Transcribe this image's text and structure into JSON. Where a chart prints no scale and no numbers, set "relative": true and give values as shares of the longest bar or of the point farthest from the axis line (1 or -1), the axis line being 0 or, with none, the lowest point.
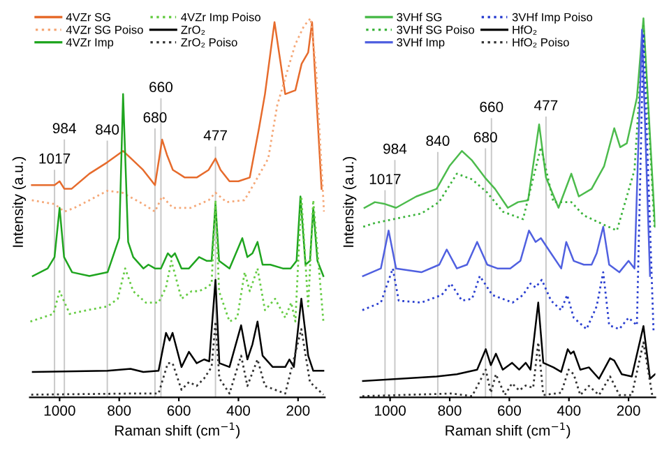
{
  "chart_data": [
    {
      "type": "line",
      "relative": true,
      "xlabel": "Raman shift (cm$^{−1}$)",
      "ylabel": "Intensity (a.u.)",
      "xlim": [
        1100,
        110
      ],
      "xticks": [
        1000,
        800,
        600,
        400,
        200
      ],
      "legend": "top left",
      "ref_lines": [
        {
          "axis": "x",
          "value": 1017,
          "label": "1017",
          "color": "#c8c8c8"
        },
        {
          "axis": "x",
          "value": 984,
          "label": "984",
          "color": "#c8c8c8"
        },
        {
          "axis": "x",
          "value": 840,
          "label": "840",
          "color": "#c8c8c8"
        },
        {
          "axis": "x",
          "value": 680,
          "label": "680",
          "color": "#c8c8c8"
        },
        {
          "axis": "x",
          "value": 660,
          "label": "660",
          "color": "#c8c8c8"
        },
        {
          "axis": "x",
          "value": 477,
          "label": "477",
          "color": "#c8c8c8"
        }
      ],
      "series": [
        {
          "name": "4VZr SG",
          "color": "#e66b2c",
          "line_style": "solid",
          "x": [
            1093,
            1017,
            1000,
            984,
            960,
            900,
            840,
            787,
            760,
            720,
            680,
            656,
            640,
            620,
            580,
            540,
            500,
            477,
            460,
            430,
            400,
            362,
            331,
            311,
            279,
            243,
            209,
            188,
            166,
            153,
            121
          ],
          "values": [
            0.56,
            0.56,
            0.57,
            0.55,
            0.55,
            0.59,
            0.62,
            0.65,
            0.63,
            0.6,
            0.56,
            0.68,
            0.64,
            0.6,
            0.58,
            0.58,
            0.6,
            0.63,
            0.6,
            0.57,
            0.57,
            0.58,
            0.71,
            0.8,
            0.99,
            0.8,
            0.81,
            0.88,
            0.91,
            0.99,
            0.55
          ]
        },
        {
          "name": "4VZr SG Poiso",
          "color": "#f5a878",
          "line_style": "dotted",
          "x": [
            1093,
            1017,
            984,
            950,
            900,
            840,
            790,
            720,
            680,
            656,
            620,
            560,
            500,
            477,
            440,
            380,
            350,
            300,
            270,
            240,
            210,
            180,
            158,
            140,
            113
          ],
          "values": [
            0.52,
            0.51,
            0.49,
            0.5,
            0.52,
            0.545,
            0.54,
            0.51,
            0.49,
            0.53,
            0.5,
            0.5,
            0.52,
            0.54,
            0.515,
            0.52,
            0.56,
            0.63,
            0.77,
            0.85,
            0.93,
            0.98,
            1.0,
            0.87,
            0.49
          ]
        },
        {
          "name": "4VZr Imp",
          "color": "#1fa51f",
          "line_style": "solid",
          "x": [
            1090,
            1040,
            1017,
            1000,
            985,
            958,
            900,
            839,
            800,
            787,
            770,
            753,
            719,
            702,
            680,
            660,
            637,
            625,
            613,
            591,
            566,
            532,
            506,
            490,
            477,
            465,
            430,
            387,
            370,
            353,
            336,
            319,
            293,
            251,
            225,
            205,
            192,
            175,
            160,
            149,
            135,
            115
          ],
          "values": [
            0.32,
            0.34,
            0.37,
            0.5,
            0.37,
            0.33,
            0.32,
            0.33,
            0.42,
            0.8,
            0.41,
            0.37,
            0.34,
            0.35,
            0.34,
            0.34,
            0.38,
            0.37,
            0.38,
            0.34,
            0.34,
            0.37,
            0.36,
            0.36,
            0.51,
            0.36,
            0.34,
            0.42,
            0.37,
            0.38,
            0.41,
            0.35,
            0.35,
            0.34,
            0.34,
            0.36,
            0.53,
            0.35,
            0.36,
            0.5,
            0.36,
            0.32
          ]
        },
        {
          "name": "4VZr Imp Poiso",
          "color": "#66cc44",
          "line_style": "dotted",
          "x": [
            1098,
            1021,
            1000,
            966,
            907,
            839,
            805,
            780,
            753,
            711,
            668,
            643,
            625,
            591,
            557,
            532,
            506,
            490,
            477,
            465,
            430,
            404,
            379,
            362,
            336,
            311,
            277,
            243,
            223,
            209,
            189,
            166,
            149,
            115
          ],
          "values": [
            0.2,
            0.22,
            0.28,
            0.22,
            0.23,
            0.24,
            0.26,
            0.34,
            0.28,
            0.25,
            0.25,
            0.29,
            0.36,
            0.26,
            0.28,
            0.28,
            0.29,
            0.3,
            0.52,
            0.28,
            0.2,
            0.21,
            0.33,
            0.28,
            0.34,
            0.23,
            0.26,
            0.21,
            0.25,
            0.2,
            0.53,
            0.24,
            0.52,
            0.2
          ]
        },
        {
          "name": "ZrO₂",
          "color": "#000000",
          "line_style": "solid",
          "x": [
            1090,
            839,
            762,
            719,
            668,
            643,
            631,
            621,
            591,
            566,
            540,
            515,
            498,
            477,
            464,
            430,
            391,
            370,
            353,
            336,
            319,
            285,
            243,
            229,
            214,
            189,
            166,
            149,
            115
          ],
          "values": [
            0.067,
            0.07,
            0.075,
            0.067,
            0.07,
            0.17,
            0.15,
            0.17,
            0.08,
            0.12,
            0.09,
            0.1,
            0.095,
            0.31,
            0.09,
            0.08,
            0.19,
            0.1,
            0.14,
            0.2,
            0.11,
            0.08,
            0.08,
            0.1,
            0.08,
            0.26,
            0.11,
            0.07,
            0.07
          ]
        },
        {
          "name": "ZrO₂ Poiso",
          "color": "#333333",
          "line_style": "dotted",
          "x": [
            1095,
            753,
            668,
            637,
            621,
            591,
            566,
            540,
            515,
            490,
            477,
            464,
            430,
            391,
            370,
            336,
            311,
            243,
            189,
            160,
            115
          ],
          "values": [
            0.007,
            0.01,
            0.01,
            0.09,
            0.09,
            0.02,
            0.04,
            0.03,
            0.05,
            0.08,
            0.2,
            0.05,
            0.01,
            0.11,
            0.03,
            0.1,
            0.03,
            0.01,
            0.18,
            0.04,
            0.007
          ]
        }
      ]
    },
    {
      "type": "line",
      "relative": true,
      "xlabel": "Raman shift (cm$^{−1}$)",
      "ylabel": "Intensity (a.u.)",
      "xlim": [
        1100,
        110
      ],
      "xticks": [
        1000,
        800,
        600,
        400,
        200
      ],
      "legend": "top left",
      "ref_lines": [
        {
          "axis": "x",
          "value": 1017,
          "label": "1017",
          "color": "#c8c8c8"
        },
        {
          "axis": "x",
          "value": 984,
          "label": "984",
          "color": "#c8c8c8"
        },
        {
          "axis": "x",
          "value": 840,
          "label": "840",
          "color": "#c8c8c8"
        },
        {
          "axis": "x",
          "value": 680,
          "label": "680",
          "color": "#c8c8c8"
        },
        {
          "axis": "x",
          "value": 660,
          "label": "660",
          "color": "#c8c8c8"
        },
        {
          "axis": "x",
          "value": 477,
          "label": "477",
          "color": "#c8c8c8"
        }
      ],
      "series": [
        {
          "name": "3VHf SG",
          "color": "#4cbb4c",
          "line_style": "solid",
          "x": [
            1086,
            1051,
            1017,
            980,
            912,
            844,
            801,
            759,
            725,
            682,
            648,
            605,
            571,
            537,
            500,
            477,
            435,
            392,
            367,
            324,
            282,
            248,
            228,
            206,
            172,
            150,
            111
          ],
          "values": [
            0.5,
            0.515,
            0.51,
            0.5,
            0.53,
            0.55,
            0.61,
            0.65,
            0.625,
            0.58,
            0.55,
            0.5,
            0.515,
            0.52,
            0.72,
            0.58,
            0.5,
            0.59,
            0.53,
            0.55,
            0.61,
            0.71,
            0.66,
            0.67,
            0.79,
            1.0,
            0.45
          ]
        },
        {
          "name": "3VHf SG Poiso",
          "color": "#3cb43c",
          "line_style": "dotted",
          "x": [
            1090,
            1051,
            895,
            836,
            776,
            725,
            674,
            622,
            554,
            494,
            452,
            392,
            350,
            282,
            239,
            180,
            150,
            113
          ],
          "values": [
            0.45,
            0.46,
            0.485,
            0.515,
            0.59,
            0.575,
            0.54,
            0.49,
            0.47,
            0.66,
            0.515,
            0.515,
            0.48,
            0.455,
            0.44,
            0.6,
            0.98,
            0.45
          ]
        },
        {
          "name": "3VHf Imp",
          "color": "#5060e0",
          "line_style": "solid",
          "x": [
            1091,
            1031,
            1005,
            980,
            895,
            835,
            810,
            776,
            742,
            708,
            674,
            640,
            597,
            563,
            534,
            512,
            494,
            460,
            426,
            409,
            384,
            350,
            324,
            307,
            285,
            265,
            231,
            200,
            180,
            155,
            128
          ],
          "values": [
            0.32,
            0.34,
            0.44,
            0.34,
            0.33,
            0.35,
            0.39,
            0.34,
            0.35,
            0.41,
            0.35,
            0.34,
            0.34,
            0.36,
            0.44,
            0.41,
            0.42,
            0.38,
            0.34,
            0.41,
            0.36,
            0.35,
            0.35,
            0.38,
            0.45,
            0.35,
            0.33,
            0.36,
            0.34,
            0.97,
            0.32
          ]
        },
        {
          "name": "3VHf Imp Poiso",
          "color": "#2a3fd0",
          "line_style": "dotted",
          "x": [
            1093,
            1031,
            991,
            971,
            895,
            827,
            796,
            759,
            725,
            699,
            657,
            589,
            554,
            529,
            512,
            491,
            460,
            426,
            406,
            384,
            341,
            307,
            285,
            265,
            231,
            200,
            172,
            150,
            116
          ],
          "values": [
            0.23,
            0.25,
            0.34,
            0.255,
            0.25,
            0.27,
            0.3,
            0.255,
            0.26,
            0.32,
            0.27,
            0.25,
            0.27,
            0.3,
            0.29,
            0.31,
            0.255,
            0.23,
            0.27,
            0.21,
            0.18,
            0.24,
            0.33,
            0.19,
            0.18,
            0.21,
            0.19,
            0.96,
            0.17
          ]
        },
        {
          "name": "HfO₂",
          "color": "#000000",
          "line_style": "solid",
          "x": [
            1091,
            844,
            776,
            708,
            679,
            662,
            645,
            622,
            591,
            567,
            545,
            529,
            503,
            486,
            452,
            426,
            404,
            394,
            384,
            362,
            333,
            299,
            262,
            248,
            223,
            189,
            150,
            128,
            111
          ],
          "values": [
            0.043,
            0.055,
            0.061,
            0.073,
            0.127,
            0.085,
            0.115,
            0.073,
            0.091,
            0.073,
            0.091,
            0.073,
            0.25,
            0.091,
            0.079,
            0.067,
            0.127,
            0.115,
            0.121,
            0.073,
            0.079,
            0.049,
            0.103,
            0.097,
            0.061,
            0.055,
            0.188,
            0.049,
            0.061
          ]
        },
        {
          "name": "HfO₂ Poiso",
          "color": "#333333",
          "line_style": "dotted",
          "x": [
            1093,
            793,
            725,
            679,
            662,
            645,
            615,
            591,
            567,
            545,
            520,
            503,
            486,
            426,
            401,
            384,
            362,
            333,
            299,
            262,
            231,
            189,
            150,
            120
          ],
          "values": [
            0.003,
            0.01,
            0.003,
            0.073,
            0.012,
            0.061,
            0.006,
            0.037,
            0.018,
            0.031,
            0.025,
            0.145,
            0.006,
            0.012,
            0.073,
            0.061,
            0.006,
            0.03,
            0.006,
            0.055,
            0.006,
            0.006,
            0.145,
            0.003
          ]
        }
      ]
    }
  ]
}
